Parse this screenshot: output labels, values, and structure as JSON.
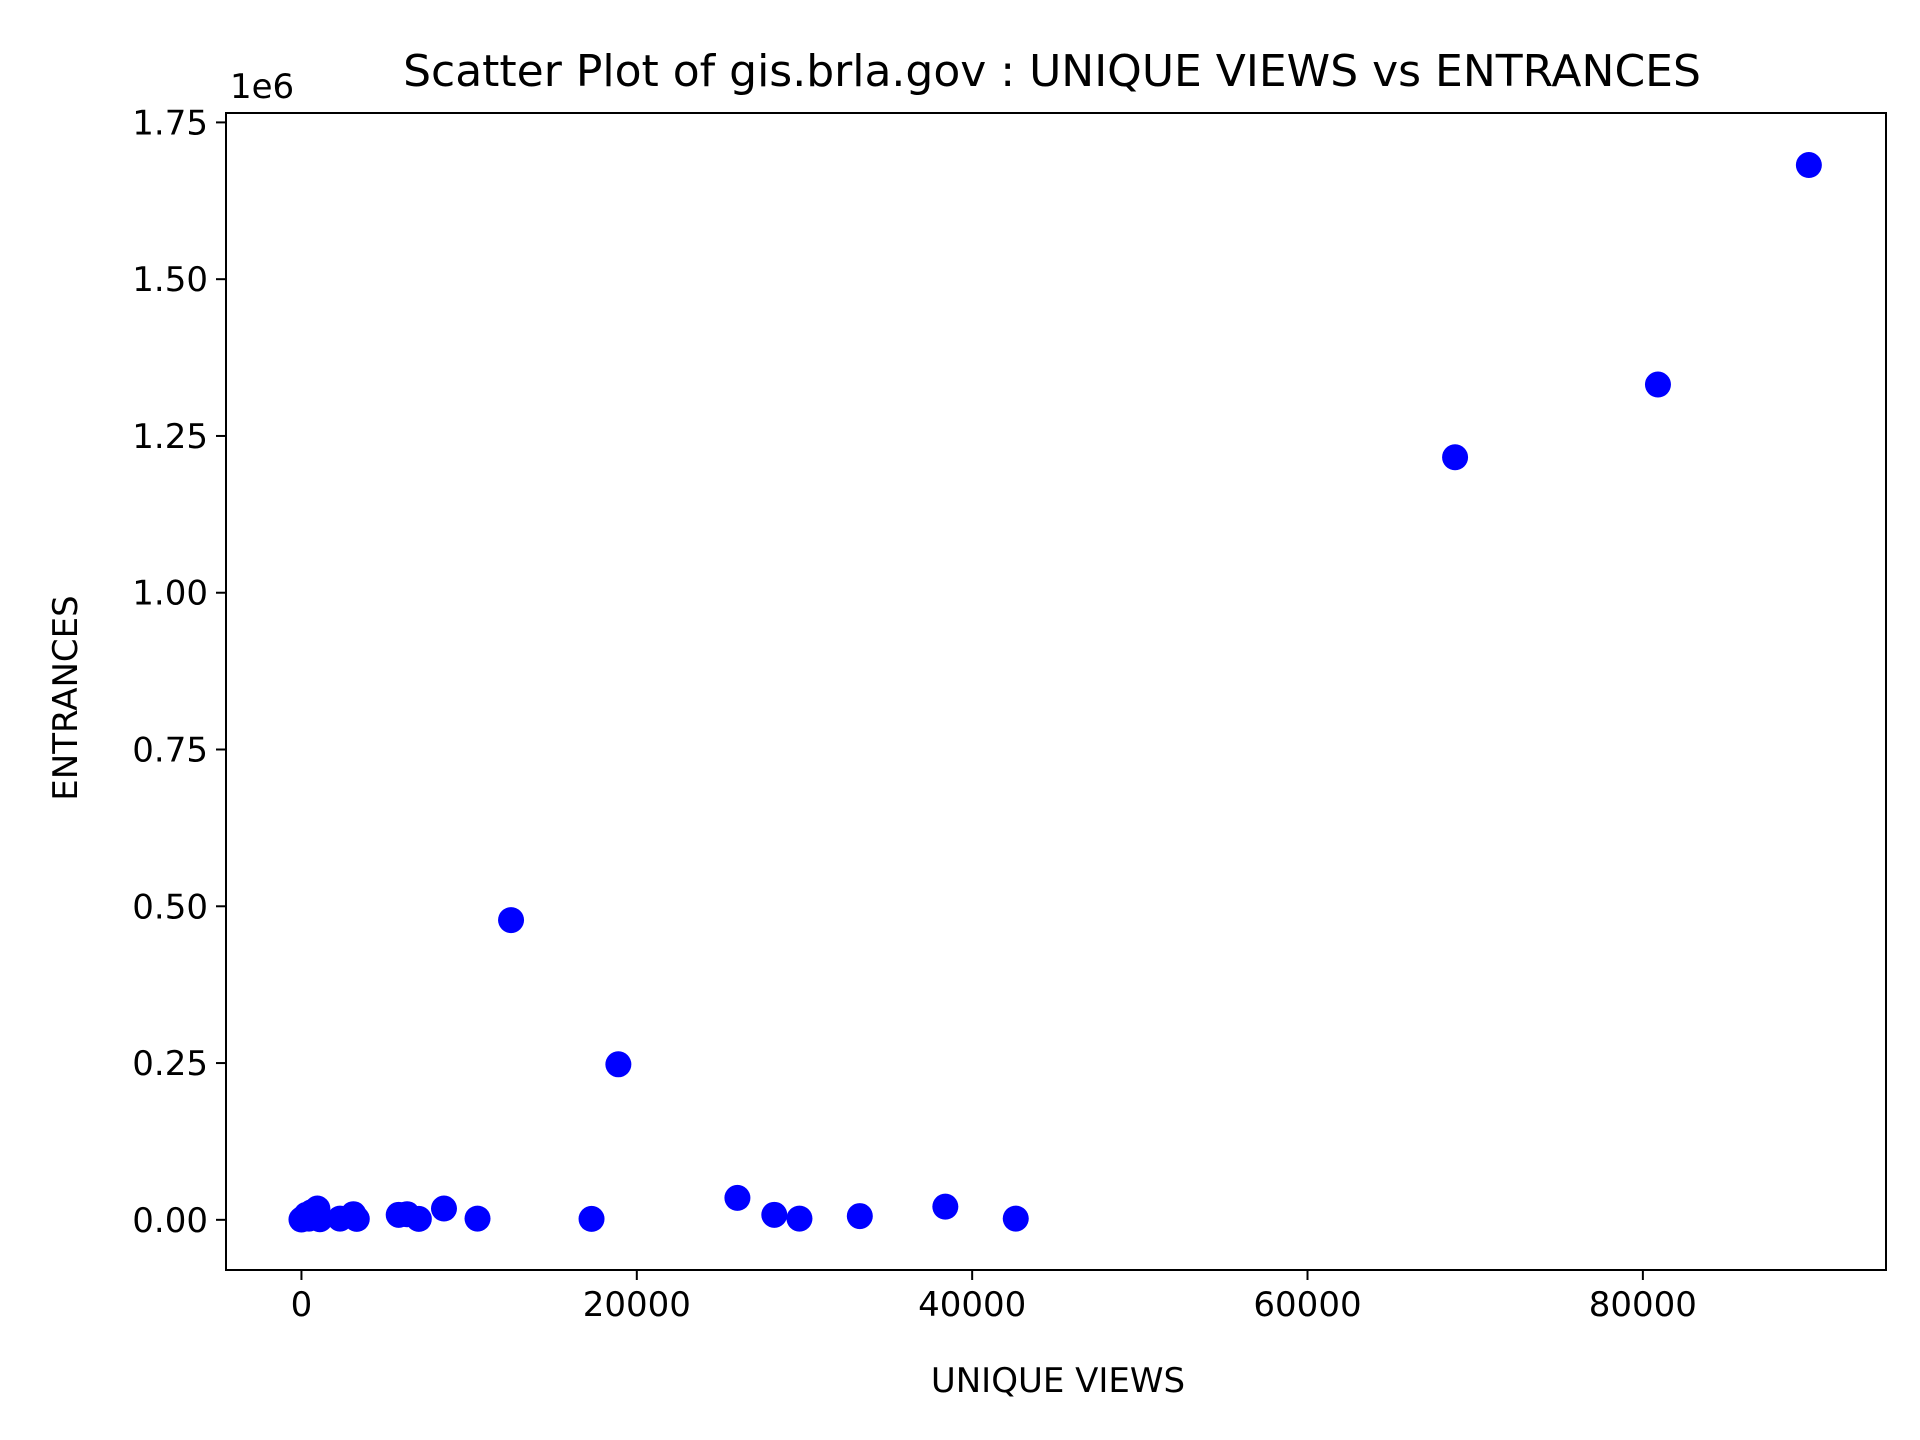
{
  "chart_data": {
    "type": "scatter",
    "title": "Scatter Plot of gis.brla.gov : UNIQUE VIEWS vs ENTRANCES",
    "xlabel": "UNIQUE VIEWS",
    "ylabel": "ENTRANCES",
    "y_offset_label": "1e6",
    "xlim": [
      -4500,
      94500
    ],
    "ylim": [
      -80000,
      1765000
    ],
    "x_ticks": [
      {
        "value": 0,
        "label": "0"
      },
      {
        "value": 20000,
        "label": "20000"
      },
      {
        "value": 40000,
        "label": "40000"
      },
      {
        "value": 60000,
        "label": "60000"
      },
      {
        "value": 80000,
        "label": "80000"
      }
    ],
    "y_ticks": [
      {
        "value": 0,
        "label": "0.00"
      },
      {
        "value": 250000,
        "label": "0.25"
      },
      {
        "value": 500000,
        "label": "0.50"
      },
      {
        "value": 750000,
        "label": "0.75"
      },
      {
        "value": 1000000,
        "label": "1.00"
      },
      {
        "value": 1250000,
        "label": "1.25"
      },
      {
        "value": 1500000,
        "label": "1.50"
      },
      {
        "value": 1750000,
        "label": "1.75"
      }
    ],
    "grid": false,
    "marker_color": "#0000ff",
    "points": [
      {
        "x": 0,
        "y": 500
      },
      {
        "x": 50,
        "y": 1500
      },
      {
        "x": 150,
        "y": 3000
      },
      {
        "x": 300,
        "y": 8000
      },
      {
        "x": 450,
        "y": 2000
      },
      {
        "x": 600,
        "y": 12000
      },
      {
        "x": 800,
        "y": 4000
      },
      {
        "x": 950,
        "y": 18000
      },
      {
        "x": 1100,
        "y": 1000
      },
      {
        "x": 2300,
        "y": 2000
      },
      {
        "x": 3100,
        "y": 9000
      },
      {
        "x": 3300,
        "y": 1500
      },
      {
        "x": 5800,
        "y": 8000
      },
      {
        "x": 6300,
        "y": 9000
      },
      {
        "x": 7000,
        "y": 1500
      },
      {
        "x": 8500,
        "y": 18000
      },
      {
        "x": 10500,
        "y": 2000
      },
      {
        "x": 12500,
        "y": 478000
      },
      {
        "x": 17300,
        "y": 1500
      },
      {
        "x": 18900,
        "y": 248000
      },
      {
        "x": 26000,
        "y": 35000
      },
      {
        "x": 28200,
        "y": 8000
      },
      {
        "x": 29700,
        "y": 2000
      },
      {
        "x": 33300,
        "y": 6000
      },
      {
        "x": 38400,
        "y": 21000
      },
      {
        "x": 42600,
        "y": 2000
      },
      {
        "x": 68800,
        "y": 1216000
      },
      {
        "x": 80900,
        "y": 1332000
      },
      {
        "x": 89900,
        "y": 1682000
      }
    ]
  }
}
